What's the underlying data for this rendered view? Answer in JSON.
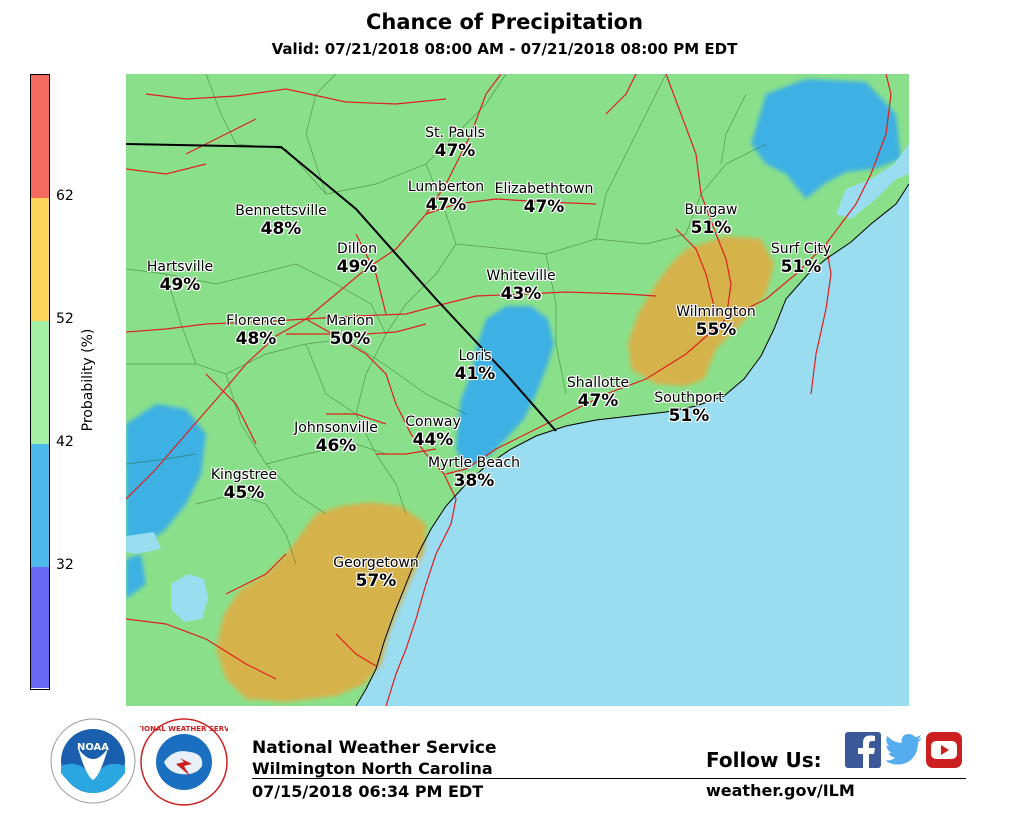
{
  "header": {
    "title": "Chance of Precipitation",
    "valid": "Valid: 07/21/2018 08:00 AM - 07/21/2018 08:00 PM EDT"
  },
  "legend": {
    "label": "Probability (%)",
    "ticks": [
      "62",
      "52",
      "42",
      "32"
    ],
    "bands": [
      {
        "range": "> 62",
        "color": "#f46a60"
      },
      {
        "range": "52-62",
        "color": "#fcd65c"
      },
      {
        "range": "42-52",
        "color": "#a6f0a6"
      },
      {
        "range": "32-42",
        "color": "#4db8ea"
      },
      {
        "range": "< 32",
        "color": "#6868f4"
      }
    ]
  },
  "colors": {
    "land_green": "#8ae08a",
    "water_blue": "#9adcf0",
    "low_blue": "#3db0e4",
    "high_yellow": "#d6b24c",
    "road": "#dd2020"
  },
  "cities": [
    {
      "name": "St. Pauls",
      "value": "47%"
    },
    {
      "name": "Lumberton",
      "value": "47%"
    },
    {
      "name": "Elizabethtown",
      "value": "47%"
    },
    {
      "name": "Burgaw",
      "value": "51%"
    },
    {
      "name": "Bennettsville",
      "value": "48%"
    },
    {
      "name": "Dillon",
      "value": "49%"
    },
    {
      "name": "Surf City",
      "value": "51%"
    },
    {
      "name": "Hartsville",
      "value": "49%"
    },
    {
      "name": "Whiteville",
      "value": "43%"
    },
    {
      "name": "Wilmington",
      "value": "55%"
    },
    {
      "name": "Florence",
      "value": "48%"
    },
    {
      "name": "Marion",
      "value": "50%"
    },
    {
      "name": "Loris",
      "value": "41%"
    },
    {
      "name": "Shallotte",
      "value": "47%"
    },
    {
      "name": "Southport",
      "value": "51%"
    },
    {
      "name": "Johnsonville",
      "value": "46%"
    },
    {
      "name": "Conway",
      "value": "44%"
    },
    {
      "name": "Myrtle Beach",
      "value": "38%"
    },
    {
      "name": "Kingstree",
      "value": "45%"
    },
    {
      "name": "Georgetown",
      "value": "57%"
    }
  ],
  "footer": {
    "agency": "National Weather Service",
    "office": "Wilmington North Carolina",
    "issued": "07/15/2018 06:34 PM EDT",
    "follow": "Follow Us:",
    "site": "weather.gov/ILM",
    "noaa_text": "NOAA",
    "nws_seal_text": "NATIONAL WEATHER SERVICE"
  }
}
